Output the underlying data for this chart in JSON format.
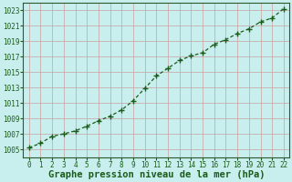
{
  "x": [
    0,
    1,
    2,
    3,
    4,
    5,
    6,
    7,
    8,
    9,
    10,
    11,
    12,
    13,
    14,
    15,
    16,
    17,
    18,
    19,
    20,
    21,
    22
  ],
  "y": [
    1005.2,
    1005.8,
    1006.7,
    1007.0,
    1007.4,
    1008.0,
    1008.7,
    1009.3,
    1010.1,
    1011.3,
    1012.9,
    1014.5,
    1015.5,
    1016.5,
    1017.1,
    1017.5,
    1018.6,
    1019.2,
    1020.0,
    1020.6,
    1021.5,
    1022.0,
    1023.2
  ],
  "xlim": [
    -0.5,
    22.5
  ],
  "ylim": [
    1004.0,
    1024.0
  ],
  "yticks": [
    1005,
    1007,
    1009,
    1011,
    1013,
    1015,
    1017,
    1019,
    1021,
    1023
  ],
  "xticks": [
    0,
    1,
    2,
    3,
    4,
    5,
    6,
    7,
    8,
    9,
    10,
    11,
    12,
    13,
    14,
    15,
    16,
    17,
    18,
    19,
    20,
    21,
    22
  ],
  "xlabel": "Graphe pression niveau de la mer (hPa)",
  "line_color": "#1a5c1a",
  "marker": "+",
  "bg_color": "#c8eeed",
  "grid_color_major": "#c8a0a0",
  "grid_color_minor": "#c8a0a0",
  "spine_color": "#2d5a2d",
  "tick_fontsize": 5.5,
  "xlabel_fontsize": 7.5
}
